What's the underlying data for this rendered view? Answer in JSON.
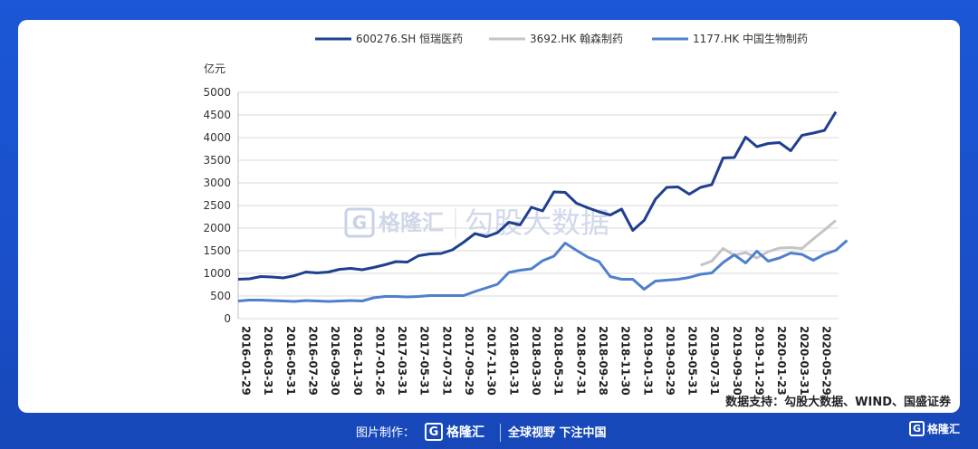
{
  "chart_data": {
    "type": "line",
    "ylabel": "亿元",
    "ylim": [
      0,
      5000
    ],
    "yticks": [
      0,
      500,
      1000,
      1500,
      2000,
      2500,
      3000,
      3500,
      4000,
      4500,
      5000
    ],
    "x_tick_labels": [
      "2016-01-29",
      "2016-03-31",
      "2016-05-31",
      "2016-07-29",
      "2016-09-30",
      "2016-11-30",
      "2017-01-26",
      "2017-03-31",
      "2017-05-31",
      "2017-07-31",
      "2017-09-29",
      "2017-11-30",
      "2018-01-31",
      "2018-03-30",
      "2018-05-31",
      "2018-07-31",
      "2018-09-28",
      "2018-11-30",
      "2019-01-31",
      "2019-03-29",
      "2019-05-31",
      "2019-07-31",
      "2019-09-30",
      "2019-11-29",
      "2020-01-23",
      "2020-03-31",
      "2020-05-29"
    ],
    "legend_position": "top",
    "series": [
      {
        "name": "600276.SH 恒瑞医药",
        "color": "#1f3f8f",
        "values": [
          870,
          880,
          930,
          920,
          900,
          950,
          1030,
          1010,
          1030,
          1090,
          1110,
          1080,
          1130,
          1190,
          1260,
          1250,
          1390,
          1430,
          1440,
          1520,
          1690,
          1880,
          1810,
          1900,
          2130,
          2070,
          2460,
          2380,
          2800,
          2790,
          2550,
          2450,
          2360,
          2290,
          2420,
          1950,
          2170,
          2640,
          2900,
          2910,
          2750,
          2900,
          2960,
          3550,
          3560,
          4010,
          3800,
          3870,
          3890,
          3710,
          4050,
          4100,
          4160,
          4570
        ],
        "start_index": 0
      },
      {
        "name": "3692.HK 翰森制药",
        "color": "#c4c4c4",
        "values": [
          1180,
          1270,
          1550,
          1400,
          1460,
          1340,
          1480,
          1560,
          1570,
          1550,
          1760,
          1960,
          2170
        ],
        "start_index": 41
      },
      {
        "name": "1177.HK 中国生物制药",
        "color": "#4f80cc",
        "values": [
          390,
          410,
          410,
          400,
          390,
          380,
          400,
          390,
          380,
          390,
          400,
          390,
          460,
          490,
          490,
          480,
          490,
          510,
          510,
          510,
          510,
          600,
          680,
          760,
          1020,
          1070,
          1100,
          1280,
          1380,
          1670,
          1510,
          1360,
          1260,
          930,
          870,
          870,
          650,
          830,
          850,
          870,
          910,
          980,
          1010,
          1240,
          1410,
          1230,
          1490,
          1270,
          1340,
          1450,
          1420,
          1290,
          1420,
          1510,
          1730
        ],
        "start_index": 0
      }
    ]
  },
  "watermark": {
    "logo_letter": "G",
    "brand": "格隆汇",
    "text": "勾股大数据"
  },
  "source": "数据支持：勾股大数据、WIND、国盛证券",
  "footer": {
    "label": "图片制作：",
    "logo_letter": "G",
    "brand": "格隆汇",
    "slogan": "全球视野 下注中国",
    "corner_logo_letter": "G",
    "corner_brand": "格隆汇"
  }
}
